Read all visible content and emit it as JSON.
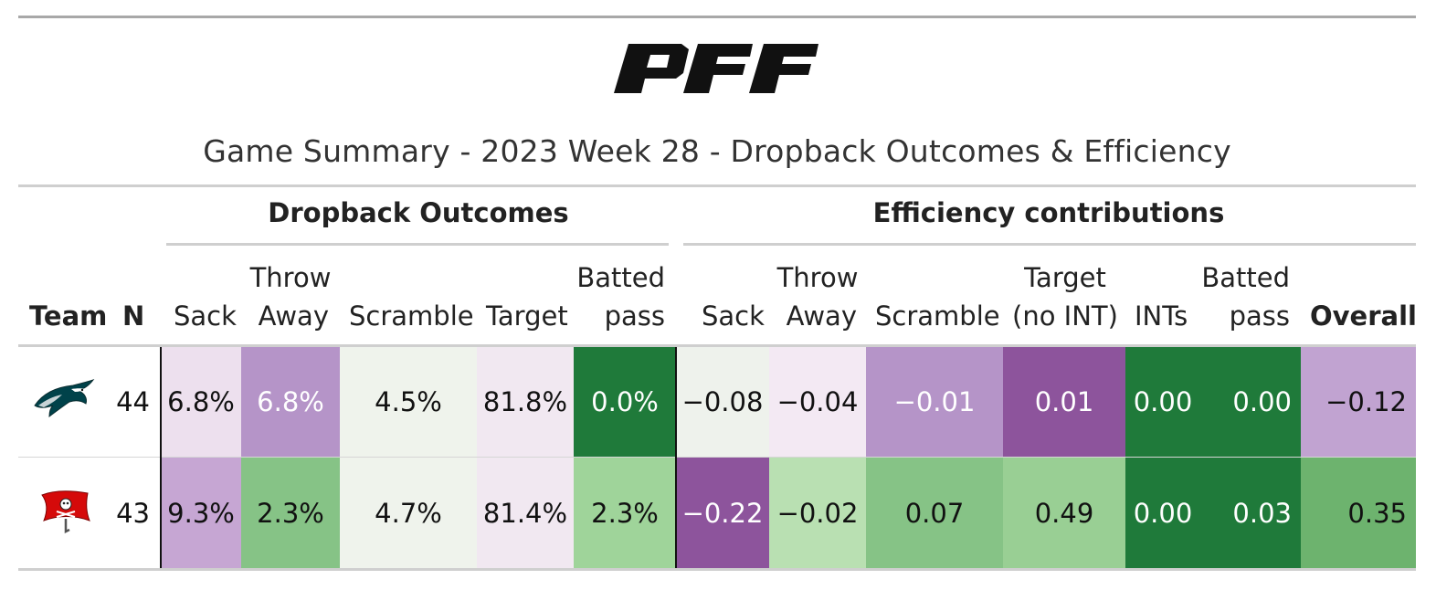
{
  "logo_text": "PFF",
  "subtitle": "Game Summary - 2023 Week 28 - Dropback Outcomes & Efficiency",
  "groups": {
    "dropback": "Dropback Outcomes",
    "efficiency": "Efficiency contributions"
  },
  "columns": {
    "team": "Team",
    "n": "N",
    "d_sack": "Sack",
    "d_throw1": "Throw",
    "d_throw2": "Away",
    "d_scramble": "Scramble",
    "d_target": "Target",
    "d_batted1": "Batted",
    "d_batted2": "pass",
    "e_sack": "Sack",
    "e_throw1": "Throw",
    "e_throw2": "Away",
    "e_scramble": "Scramble",
    "e_target1": "Target",
    "e_target2": "(no INT)",
    "e_ints": "INTs",
    "e_batted1": "Batted",
    "e_batted2": "pass",
    "e_overall": "Overall"
  },
  "rows": [
    {
      "team_logo": "eagles-logo",
      "n": "44",
      "d_sack": "6.8%",
      "d_throw": "6.8%",
      "d_scramble": "4.5%",
      "d_target": "81.8%",
      "d_batted": "0.0%",
      "e_sack": "−0.08",
      "e_throw": "−0.04",
      "e_scramble": "−0.01",
      "e_target": "0.01",
      "e_ints": "0.00",
      "e_batted": "0.00",
      "e_overall": "−0.12",
      "colors": {
        "d_sack": "#ede0ee",
        "d_throw": "#b594c8",
        "d_scramble": "#eff3ec",
        "d_target": "#f1e8f1",
        "d_batted": "#1f7a3a",
        "e_sack": "#eef2ec",
        "e_throw": "#f3e9f3",
        "e_scramble": "#b594c8",
        "e_target": "#8d549c",
        "e_ints": "#1f7a3a",
        "e_batted": "#1f7a3a",
        "e_overall": "#c1a3d1"
      }
    },
    {
      "team_logo": "buccaneers-logo",
      "n": "43",
      "d_sack": "9.3%",
      "d_throw": "2.3%",
      "d_scramble": "4.7%",
      "d_target": "81.4%",
      "d_batted": "2.3%",
      "e_sack": "−0.22",
      "e_throw": "−0.02",
      "e_scramble": "0.07",
      "e_target": "0.49",
      "e_ints": "0.00",
      "e_batted": "0.03",
      "e_overall": "0.35",
      "colors": {
        "d_sack": "#c6a6d3",
        "d_throw": "#86c386",
        "d_scramble": "#eff3ec",
        "d_target": "#f1e8f1",
        "d_batted": "#9fd49a",
        "e_sack": "#8d549c",
        "e_throw": "#b9e0b2",
        "e_scramble": "#86c386",
        "e_target": "#99cf94",
        "e_ints": "#1f7a3a",
        "e_batted": "#1f7a3a",
        "e_overall": "#6db36e"
      }
    }
  ]
}
